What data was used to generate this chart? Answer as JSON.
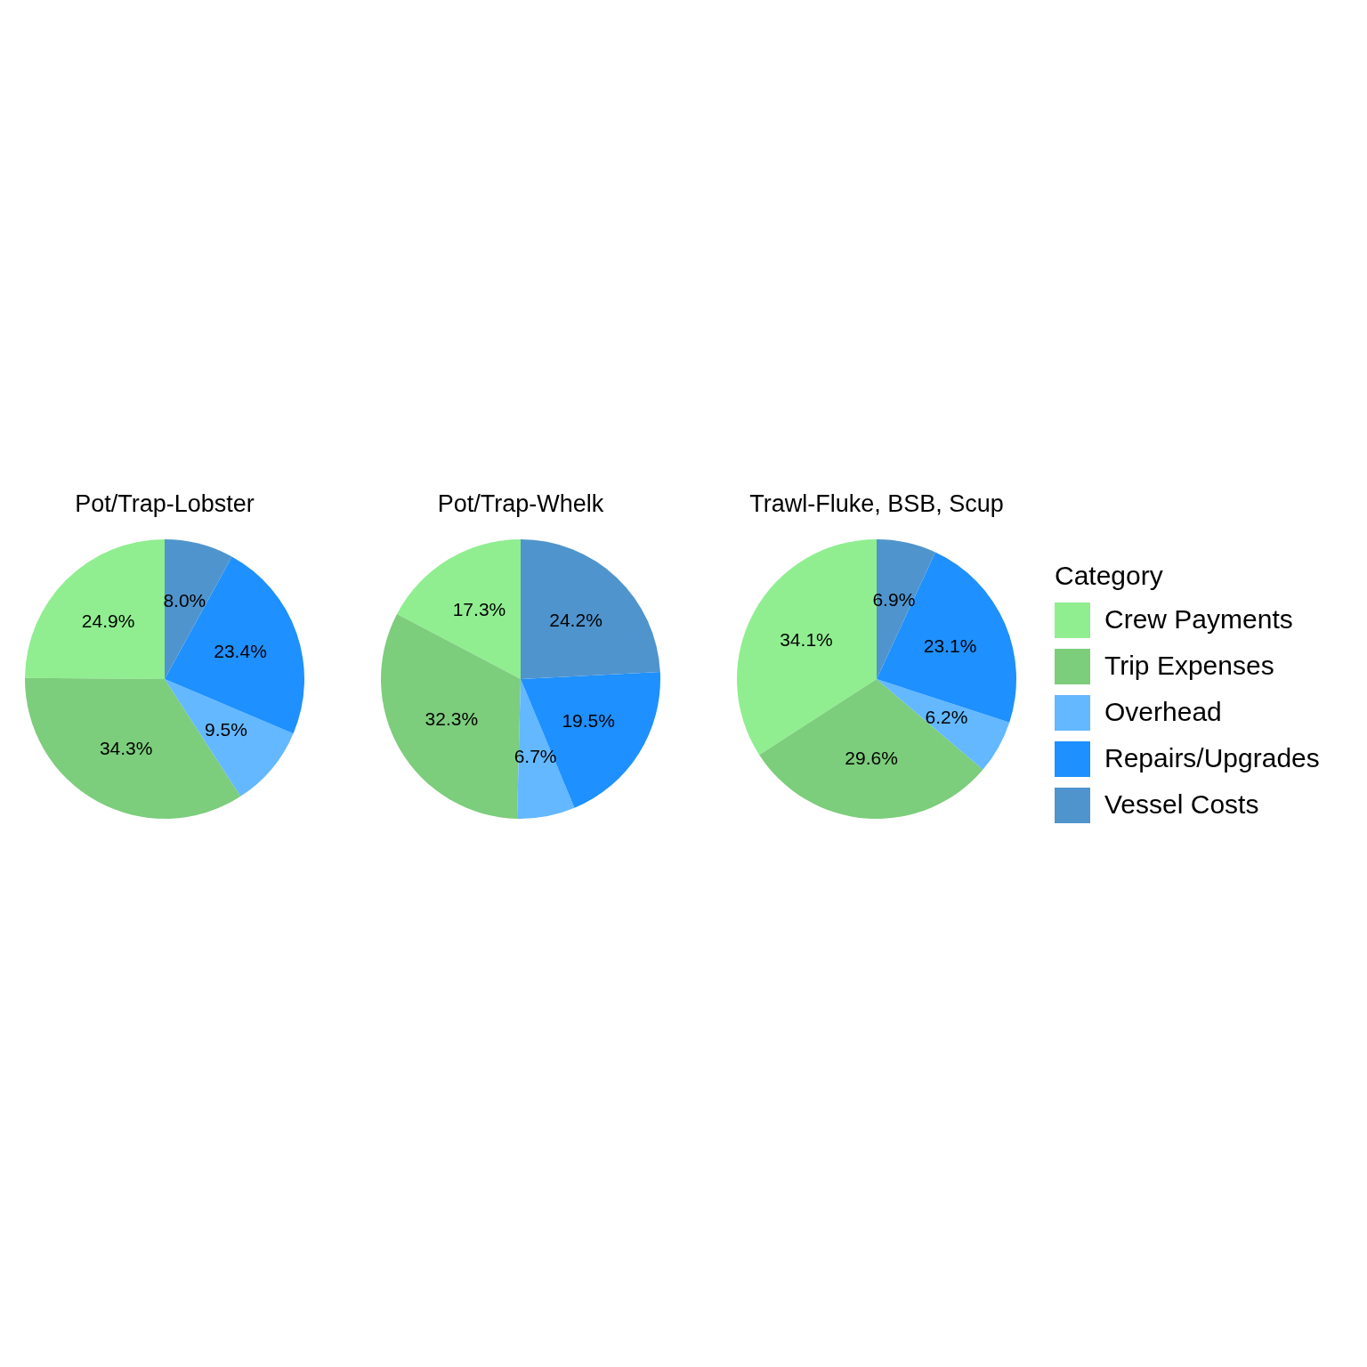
{
  "chart_data": [
    {
      "type": "pie",
      "title": "Pot/Trap-Lobster",
      "categories": [
        null,
        null,
        null,
        null,
        null
      ],
      "values": [
        24.9,
        34.3,
        9.5,
        23.4,
        8.0
      ],
      "value_labels": [
        "24.9%",
        "34.3%",
        "9.5%",
        "23.4%",
        "8.0%"
      ],
      "colors": [
        "#90ee90",
        "#7ccd7c",
        "#63b8ff",
        "#1e90ff",
        "#4f94cd"
      ],
      "legend": false
    },
    {
      "type": "pie",
      "title": "Pot/Trap-Whelk",
      "categories": [
        null,
        null,
        null,
        null,
        null
      ],
      "values": [
        17.3,
        32.3,
        6.7,
        19.5,
        24.2
      ],
      "value_labels": [
        "17.3%",
        "32.3%",
        "6.7%",
        "19.5%",
        "24.2%"
      ],
      "colors": [
        "#90ee90",
        "#7ccd7c",
        "#63b8ff",
        "#1e90ff",
        "#4f94cd"
      ],
      "legend": false
    },
    {
      "type": "pie",
      "title": "Trawl-Fluke, BSB, Scup",
      "categories": [
        "Crew Payments",
        "Trip Expenses",
        "Overhead",
        "Repairs/Upgrades",
        "Vessel Costs"
      ],
      "values": [
        34.1,
        29.6,
        6.2,
        23.1,
        6.9
      ],
      "value_labels": [
        "34.1%",
        "29.6%",
        "6.2%",
        "23.1%",
        "6.9%"
      ],
      "colors": [
        "#90ee90",
        "#7ccd7c",
        "#63b8ff",
        "#1e90ff",
        "#4f94cd"
      ],
      "legend": "right",
      "legend_title": "Category"
    }
  ]
}
